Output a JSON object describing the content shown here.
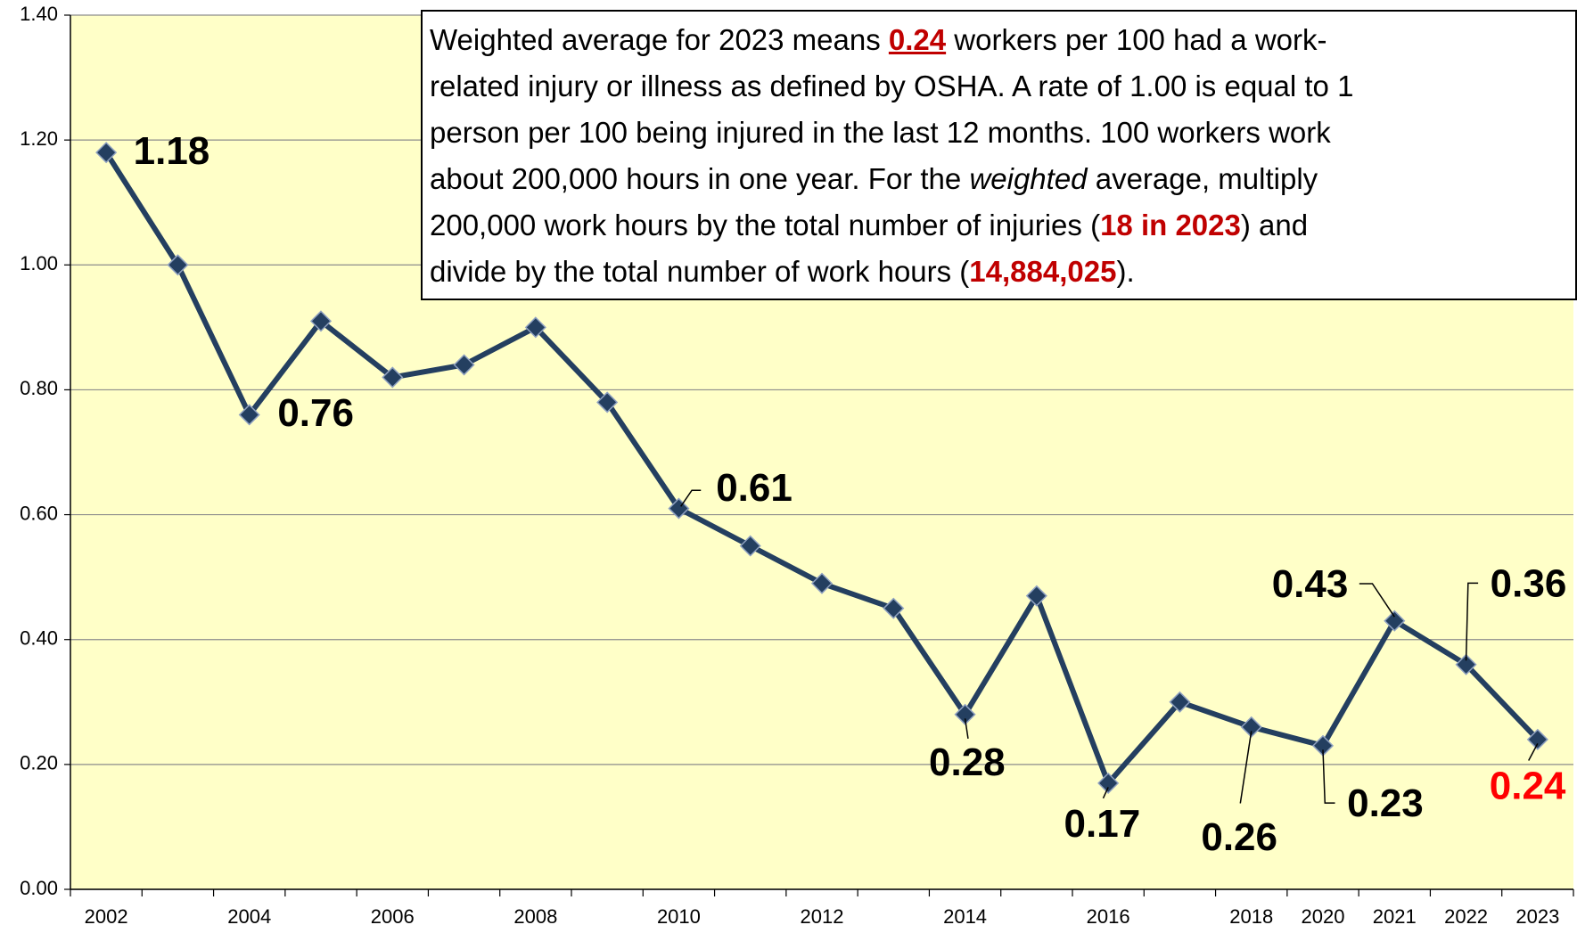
{
  "chart_data": {
    "type": "line",
    "categories": [
      "2002",
      null,
      "2004",
      null,
      "2006",
      null,
      "2008",
      null,
      "2010",
      null,
      "2012",
      null,
      "2014",
      null,
      "2016",
      null,
      "2018",
      "2020",
      "2021",
      "2022",
      "2023"
    ],
    "values": [
      1.18,
      1.0,
      0.76,
      0.91,
      0.82,
      0.84,
      0.9,
      0.78,
      0.61,
      0.55,
      0.49,
      0.45,
      0.28,
      0.47,
      0.17,
      0.3,
      0.26,
      0.23,
      0.43,
      0.36,
      0.24
    ],
    "value_labels": [
      "1.18",
      null,
      "0.76",
      null,
      null,
      null,
      null,
      null,
      "0.61",
      null,
      null,
      null,
      "0.28",
      null,
      "0.17",
      null,
      "0.26",
      "0.23",
      "0.43",
      "0.36",
      "0.24"
    ],
    "value_label_colors": [
      "#000000",
      null,
      "#000000",
      null,
      null,
      null,
      null,
      null,
      "#000000",
      null,
      null,
      null,
      "#000000",
      null,
      "#000000",
      null,
      "#000000",
      "#000000",
      "#000000",
      "#000000",
      "#ff0000"
    ],
    "color": "#243f60",
    "plot_background": "#ffffc8",
    "ylim": [
      0,
      1.4
    ],
    "yticks": [
      {
        "value": 0,
        "label": "0.00"
      },
      {
        "value": 0.2,
        "label": "0.20"
      },
      {
        "value": 0.4,
        "label": "0.40"
      },
      {
        "value": 0.6,
        "label": "0.60"
      },
      {
        "value": 0.8,
        "label": "0.80"
      },
      {
        "value": 1.0,
        "label": "1.00"
      },
      {
        "value": 1.2,
        "label": "1.20"
      },
      {
        "value": 1.4,
        "label": "1.40"
      }
    ],
    "grid": true,
    "annotation": [
      "Weighted average for 2023 means ",
      "0.24",
      " workers per 100 had a work-",
      "related injury or illness as defined by OSHA. A rate of 1.00 is equal to 1",
      "person per 100 being injured in the last 12 months. 100 workers work",
      "about 200,000 hours in one year. For the ",
      "weighted",
      " average, multiply",
      "200,000 work hours by the total number of injuries (",
      "18 in 2023",
      ") and",
      "divide by the total number of work hours (",
      "14,884,025",
      ")."
    ]
  }
}
